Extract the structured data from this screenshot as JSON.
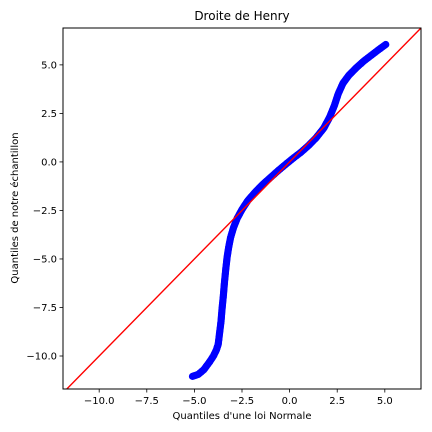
{
  "chart_data": {
    "type": "scatter",
    "title": "Droite de Henry",
    "xlabel": "Quantiles d'une loi Normale",
    "ylabel": "Quantiles de notre échantillon",
    "xlim": [
      -11.9,
      6.9
    ],
    "ylim": [
      -11.7,
      6.9
    ],
    "x_ticks": [
      -10.0,
      -7.5,
      -5.0,
      -2.5,
      0.0,
      2.5,
      5.0
    ],
    "y_ticks": [
      -10.0,
      -7.5,
      -5.0,
      -2.5,
      0.0,
      2.5,
      5.0
    ],
    "x_tick_labels": [
      "−10.0",
      "−7.5",
      "−5.0",
      "−2.5",
      "0.0",
      "2.5",
      "5.0"
    ],
    "y_tick_labels": [
      "−10.0",
      "−7.5",
      "−5.0",
      "−2.5",
      "0.0",
      "2.5",
      "5.0"
    ],
    "grid": false,
    "legend": "none",
    "series": [
      {
        "color": "#0000ff",
        "marker": "circle",
        "points": [
          [
            -5.1,
            -11.05
          ],
          [
            -4.8,
            -10.95
          ],
          [
            -4.5,
            -10.7
          ],
          [
            -4.2,
            -10.3
          ],
          [
            -4.0,
            -10.0
          ],
          [
            -3.85,
            -9.7
          ],
          [
            -3.75,
            -9.4
          ],
          [
            -3.65,
            -8.6
          ],
          [
            -3.6,
            -8.2
          ],
          [
            -3.55,
            -7.6
          ],
          [
            -3.48,
            -6.9
          ],
          [
            -3.42,
            -6.2
          ],
          [
            -3.35,
            -5.5
          ],
          [
            -3.28,
            -4.9
          ],
          [
            -3.2,
            -4.4
          ],
          [
            -3.1,
            -3.9
          ],
          [
            -2.95,
            -3.4
          ],
          [
            -2.75,
            -2.9
          ],
          [
            -2.5,
            -2.45
          ],
          [
            -2.2,
            -2.0
          ],
          [
            -1.8,
            -1.55
          ],
          [
            -1.4,
            -1.15
          ],
          [
            -1.0,
            -0.8
          ],
          [
            -0.6,
            -0.45
          ],
          [
            -0.2,
            -0.12
          ],
          [
            0.2,
            0.2
          ],
          [
            0.6,
            0.5
          ],
          [
            1.0,
            0.85
          ],
          [
            1.4,
            1.25
          ],
          [
            1.8,
            1.75
          ],
          [
            2.1,
            2.3
          ],
          [
            2.35,
            2.9
          ],
          [
            2.55,
            3.5
          ],
          [
            2.8,
            4.05
          ],
          [
            3.1,
            4.45
          ],
          [
            3.5,
            4.85
          ],
          [
            3.9,
            5.2
          ],
          [
            4.3,
            5.5
          ],
          [
            4.7,
            5.8
          ],
          [
            5.05,
            6.05
          ]
        ]
      }
    ],
    "reference_line": {
      "type": "y=x",
      "color": "#ff0000"
    }
  }
}
